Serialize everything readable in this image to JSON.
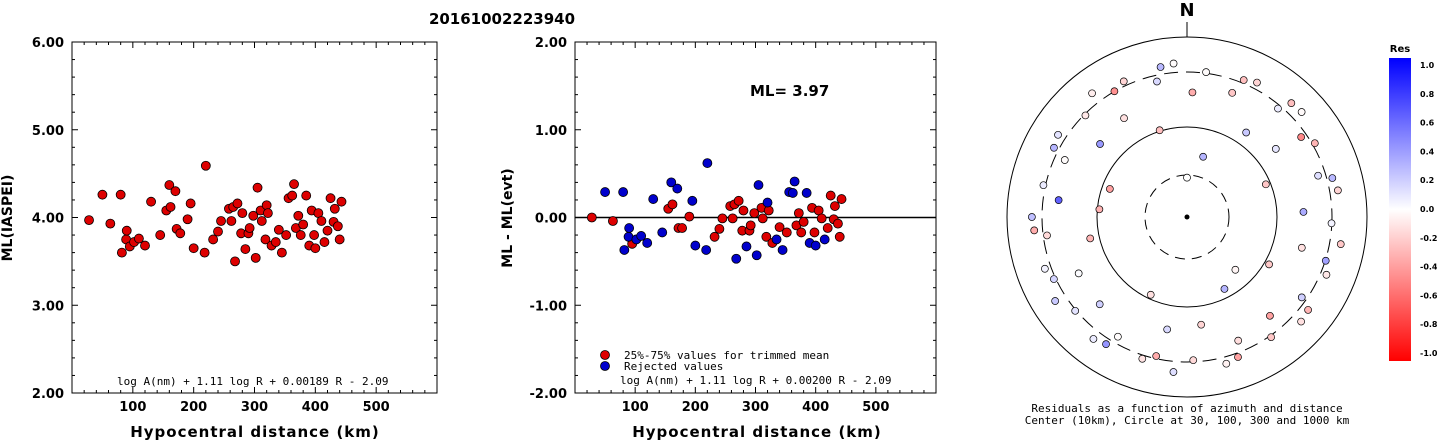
{
  "title": "20161002223940",
  "left_panel": {
    "ylabel": "ML(IASPEI)",
    "xlabel": "Hypocentral distance (km)",
    "formula": "log A(nm) + 1.11 log R + 0.00189 R - 2.09",
    "yticks": [
      "2.00",
      "3.00",
      "4.00",
      "5.00",
      "6.00"
    ],
    "xticks": [
      "100",
      "200",
      "300",
      "400",
      "500"
    ]
  },
  "middle_panel": {
    "ylabel": "ML - ML(evt)",
    "xlabel": "Hypocentral distance (km)",
    "ml_text": "ML= 3.97",
    "formula": "log A(nm) + 1.11 log R + 0.00200 R - 2.09",
    "legend": [
      "25%-75% values for trimmed mean",
      "Rejected values"
    ],
    "yticks": [
      "-2.00",
      "-1.00",
      "0.00",
      "1.00",
      "2.00"
    ],
    "xticks": [
      "100",
      "200",
      "300",
      "400",
      "500"
    ]
  },
  "polar_panel": {
    "north_label": "N",
    "caption_line1": "Residuals as a function of azimuth and distance",
    "caption_line2": "Center (10km), Circle at 30, 100, 300 and 1000 km"
  },
  "colorbar": {
    "title": "Res",
    "ticks": [
      "1.0",
      "0.8",
      "0.6",
      "0.4",
      "0.2",
      "0.0",
      "-0.2",
      "-0.4",
      "-0.6",
      "-0.8",
      "-1.0"
    ]
  },
  "colors": {
    "accepted": "#dd0000",
    "rejected": "#0000cc",
    "positive": "#0000ff",
    "negative": "#ff0000"
  },
  "chart_data": [
    {
      "type": "scatter",
      "title": "20161002223940",
      "xlabel": "Hypocentral distance (km)",
      "ylabel": "ML(IASPEI)",
      "xlim": [
        0,
        600
      ],
      "ylim": [
        2,
        6
      ],
      "points": [
        [
          28,
          3.97
        ],
        [
          50,
          4.26
        ],
        [
          63,
          3.93
        ],
        [
          80,
          4.26
        ],
        [
          82,
          3.6
        ],
        [
          89,
          3.75
        ],
        [
          90,
          3.85
        ],
        [
          95,
          3.67
        ],
        [
          102,
          3.72
        ],
        [
          110,
          3.76
        ],
        [
          120,
          3.68
        ],
        [
          130,
          4.18
        ],
        [
          145,
          3.8
        ],
        [
          155,
          4.08
        ],
        [
          160,
          4.37
        ],
        [
          162,
          4.12
        ],
        [
          170,
          4.3
        ],
        [
          172,
          3.87
        ],
        [
          178,
          3.82
        ],
        [
          190,
          3.98
        ],
        [
          195,
          4.16
        ],
        [
          200,
          3.65
        ],
        [
          218,
          3.6
        ],
        [
          220,
          4.59
        ],
        [
          232,
          3.75
        ],
        [
          240,
          3.84
        ],
        [
          245,
          3.96
        ],
        [
          258,
          4.1
        ],
        [
          262,
          3.96
        ],
        [
          265,
          4.12
        ],
        [
          268,
          3.5
        ],
        [
          272,
          4.16
        ],
        [
          278,
          3.82
        ],
        [
          280,
          4.05
        ],
        [
          285,
          3.64
        ],
        [
          290,
          3.82
        ],
        [
          292,
          3.88
        ],
        [
          298,
          4.02
        ],
        [
          302,
          3.54
        ],
        [
          305,
          4.34
        ],
        [
          310,
          4.08
        ],
        [
          312,
          3.96
        ],
        [
          318,
          3.75
        ],
        [
          320,
          4.14
        ],
        [
          322,
          4.05
        ],
        [
          328,
          3.68
        ],
        [
          335,
          3.72
        ],
        [
          340,
          3.86
        ],
        [
          345,
          3.6
        ],
        [
          352,
          3.8
        ],
        [
          356,
          4.22
        ],
        [
          362,
          4.25
        ],
        [
          365,
          4.38
        ],
        [
          368,
          3.88
        ],
        [
          372,
          4.02
        ],
        [
          376,
          3.8
        ],
        [
          380,
          3.92
        ],
        [
          385,
          4.25
        ],
        [
          390,
          3.68
        ],
        [
          394,
          4.08
        ],
        [
          398,
          3.8
        ],
        [
          400,
          3.65
        ],
        [
          405,
          4.05
        ],
        [
          410,
          3.96
        ],
        [
          415,
          3.72
        ],
        [
          420,
          3.85
        ],
        [
          425,
          4.22
        ],
        [
          430,
          3.95
        ],
        [
          432,
          4.1
        ],
        [
          437,
          3.9
        ],
        [
          440,
          3.75
        ],
        [
          443,
          4.18
        ]
      ]
    },
    {
      "type": "scatter",
      "xlabel": "Hypocentral distance (km)",
      "ylabel": "ML - ML(evt)",
      "xlim": [
        0,
        600
      ],
      "ylim": [
        -2,
        2
      ],
      "reference_line": 0.0,
      "series": [
        {
          "name": "25%-75% values for trimmed mean",
          "points": [
            [
              28,
              0.0
            ],
            [
              63,
              -0.04
            ],
            [
              95,
              -0.3
            ],
            [
              155,
              0.1
            ],
            [
              162,
              0.15
            ],
            [
              172,
              -0.12
            ],
            [
              178,
              -0.12
            ],
            [
              190,
              0.01
            ],
            [
              232,
              -0.22
            ],
            [
              240,
              -0.13
            ],
            [
              245,
              -0.01
            ],
            [
              258,
              0.13
            ],
            [
              262,
              -0.01
            ],
            [
              265,
              0.15
            ],
            [
              272,
              0.19
            ],
            [
              278,
              -0.15
            ],
            [
              280,
              0.08
            ],
            [
              290,
              -0.15
            ],
            [
              292,
              -0.09
            ],
            [
              298,
              0.05
            ],
            [
              310,
              0.11
            ],
            [
              312,
              -0.01
            ],
            [
              318,
              -0.22
            ],
            [
              322,
              0.08
            ],
            [
              328,
              -0.29
            ],
            [
              340,
              -0.11
            ],
            [
              352,
              -0.17
            ],
            [
              368,
              -0.09
            ],
            [
              372,
              0.05
            ],
            [
              376,
              -0.17
            ],
            [
              380,
              -0.05
            ],
            [
              394,
              0.11
            ],
            [
              398,
              -0.17
            ],
            [
              405,
              0.08
            ],
            [
              410,
              -0.01
            ],
            [
              420,
              -0.12
            ],
            [
              425,
              0.25
            ],
            [
              430,
              -0.02
            ],
            [
              432,
              0.13
            ],
            [
              437,
              -0.07
            ],
            [
              440,
              -0.22
            ],
            [
              443,
              0.21
            ]
          ]
        },
        {
          "name": "Rejected values",
          "points": [
            [
              50,
              0.29
            ],
            [
              80,
              0.29
            ],
            [
              82,
              -0.37
            ],
            [
              89,
              -0.22
            ],
            [
              90,
              -0.12
            ],
            [
              102,
              -0.25
            ],
            [
              110,
              -0.21
            ],
            [
              120,
              -0.29
            ],
            [
              130,
              0.21
            ],
            [
              145,
              -0.17
            ],
            [
              160,
              0.4
            ],
            [
              170,
              0.33
            ],
            [
              195,
              0.19
            ],
            [
              200,
              -0.32
            ],
            [
              218,
              -0.37
            ],
            [
              220,
              0.62
            ],
            [
              268,
              -0.47
            ],
            [
              285,
              -0.33
            ],
            [
              302,
              -0.43
            ],
            [
              305,
              0.37
            ],
            [
              320,
              0.17
            ],
            [
              335,
              -0.25
            ],
            [
              345,
              -0.37
            ],
            [
              356,
              0.29
            ],
            [
              362,
              0.28
            ],
            [
              365,
              0.41
            ],
            [
              385,
              0.28
            ],
            [
              390,
              -0.29
            ],
            [
              400,
              -0.32
            ],
            [
              415,
              -0.25
            ]
          ]
        }
      ],
      "annotation": "ML= 3.97"
    },
    {
      "type": "scatter",
      "title": "Residuals as a function of azimuth and distance",
      "radial_rings_km": [
        30,
        100,
        300,
        1000
      ]
    }
  ]
}
